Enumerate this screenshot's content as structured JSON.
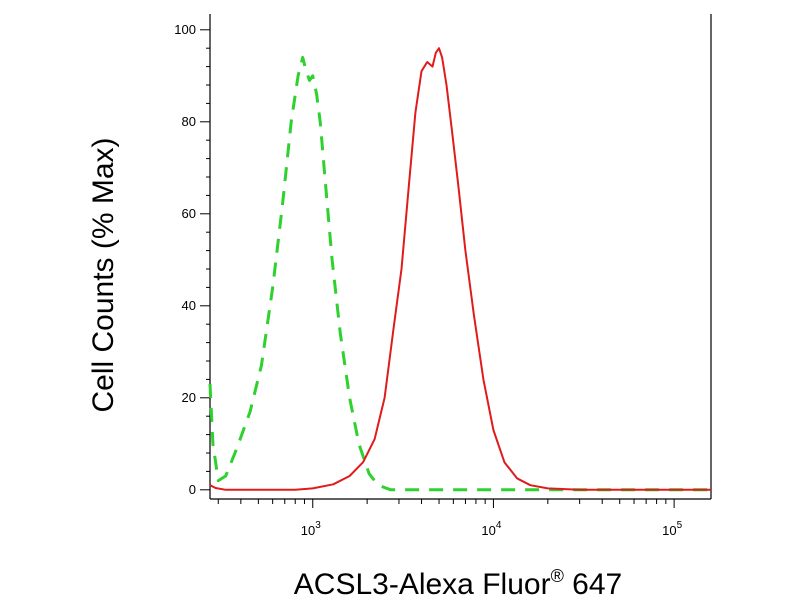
{
  "chart_data": {
    "type": "line",
    "title": "",
    "xlabel": "ACSL3-Alexa Fluor",
    "xlabel_superscript": "®",
    "xlabel_suffix": " 647",
    "ylabel": "Cell Counts (% Max)",
    "x_scale": "log",
    "xlim": [
      270,
      160000
    ],
    "ylim": [
      -2,
      103
    ],
    "y_ticks": [
      0,
      20,
      40,
      60,
      80,
      100
    ],
    "y_tick_labels": [
      "0",
      "20",
      "40",
      "60",
      "80",
      "100"
    ],
    "x_ticks": [
      1000,
      10000,
      100000
    ],
    "x_tick_labels": [
      {
        "base": "10",
        "exp": "3"
      },
      {
        "base": "10",
        "exp": "4"
      },
      {
        "base": "10",
        "exp": "5"
      }
    ],
    "grid": false,
    "legend": "none",
    "series": [
      {
        "color": "#2ed12e",
        "dash": "dashed",
        "x": [
          270,
          280,
          300,
          330,
          380,
          450,
          520,
          600,
          680,
          760,
          830,
          880,
          920,
          960,
          1000,
          1050,
          1100,
          1180,
          1280,
          1420,
          1600,
          1800,
          2050,
          2300,
          2700,
          3500,
          5000,
          8000,
          12000,
          20000,
          50000,
          160000
        ],
        "y": [
          23,
          10,
          2,
          3,
          9,
          17,
          27,
          44,
          62,
          80,
          90,
          94,
          91,
          89,
          90,
          86,
          80,
          66,
          50,
          34,
          20,
          10,
          3.5,
          1,
          0,
          0,
          0,
          0,
          0,
          0,
          0,
          0
        ]
      },
      {
        "color": "#e01b1b",
        "dash": "solid",
        "x": [
          270,
          290,
          330,
          500,
          800,
          1000,
          1300,
          1600,
          1900,
          2200,
          2500,
          2800,
          3100,
          3400,
          3700,
          4000,
          4300,
          4600,
          4800,
          5000,
          5200,
          5500,
          5900,
          6400,
          7000,
          7800,
          8800,
          10000,
          11500,
          13500,
          16000,
          20000,
          30000,
          60000,
          160000
        ],
        "y": [
          1,
          0.4,
          0,
          0,
          0,
          0.3,
          1.2,
          3,
          6,
          11,
          20,
          35,
          48,
          66,
          82,
          91,
          93,
          92,
          95,
          96,
          94,
          88,
          78,
          66,
          52,
          38,
          24,
          13,
          6,
          2.5,
          1,
          0.3,
          0,
          0,
          0
        ]
      }
    ]
  }
}
